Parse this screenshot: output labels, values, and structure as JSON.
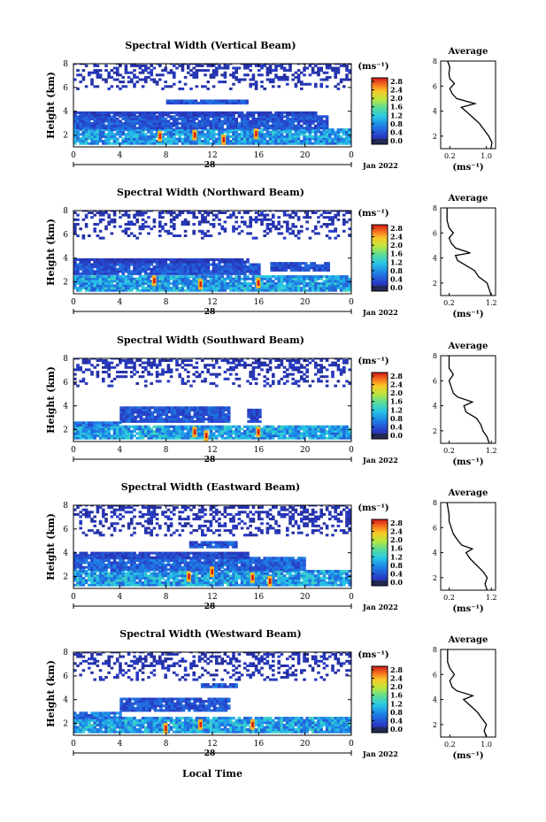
{
  "figure": {
    "xaxis_title": "Local Time",
    "colorbar_label": "(ms⁻¹)",
    "avg_title": "Average",
    "avg_xlabel": "(ms⁻¹)"
  },
  "chart_data": [
    {
      "type": "heatmap",
      "title": "Spectral Width (Vertical Beam)",
      "ylabel": "Height (km)",
      "ylim": [
        1,
        8
      ],
      "yticks": [
        2,
        4,
        6,
        8
      ],
      "xticks": [
        "0",
        "4",
        "8",
        "12",
        "16",
        "20",
        "0"
      ],
      "date_label": "28",
      "month_label": "Jan 2022",
      "colorbar_ticks": [
        "2.8",
        "2.4",
        "2.0",
        "1.6",
        "1.2",
        "0.8",
        "0.4",
        "0.0"
      ],
      "avg_xticks": [
        "0.2",
        "1.0"
      ],
      "avg_xlim": [
        0,
        1.2
      ],
      "avg_yticks": [
        "2",
        "4",
        "6",
        "8"
      ],
      "layers": [
        {
          "bottom": 1.2,
          "top": 2.5,
          "t0": 0,
          "t1": 24,
          "value": 0.9
        },
        {
          "bottom": 2.5,
          "top": 3.6,
          "t0": 0,
          "t1": 22,
          "value": 0.5
        },
        {
          "bottom": 3.6,
          "top": 3.9,
          "t0": 0,
          "t1": 21,
          "value": 0.35
        },
        {
          "bottom": 4.6,
          "top": 4.9,
          "t0": 8,
          "t1": 15,
          "value": 0.5
        }
      ],
      "sparse": {
        "bottom": 5.8,
        "top": 8.0,
        "t0": 0,
        "t1": 24
      },
      "hot": [
        [
          10.5,
          2.0
        ],
        [
          15.8,
          2.1
        ],
        [
          7.5,
          1.9
        ],
        [
          13.0,
          1.6
        ]
      ],
      "avg_profile": [
        [
          1.0,
          1.1
        ],
        [
          1.5,
          1.12
        ],
        [
          2.0,
          1.05
        ],
        [
          2.5,
          0.95
        ],
        [
          3.0,
          0.85
        ],
        [
          3.5,
          0.7
        ],
        [
          4.0,
          0.55
        ],
        [
          4.3,
          0.45
        ],
        [
          4.6,
          0.75
        ],
        [
          5.0,
          0.35
        ],
        [
          5.4,
          0.25
        ],
        [
          5.8,
          0.2
        ],
        [
          6.2,
          0.3
        ],
        [
          6.6,
          0.2
        ],
        [
          7.0,
          0.18
        ],
        [
          7.5,
          0.2
        ],
        [
          8.0,
          0.15
        ]
      ]
    },
    {
      "type": "heatmap",
      "title": "Spectral Width (Northward Beam)",
      "ylabel": "Height (km)",
      "ylim": [
        1,
        8
      ],
      "yticks": [
        2,
        4,
        6,
        8
      ],
      "xticks": [
        "0",
        "4",
        "8",
        "12",
        "16",
        "20",
        "0"
      ],
      "date_label": "28",
      "month_label": "Jan 2022",
      "colorbar_ticks": [
        "2.8",
        "2.4",
        "2.0",
        "1.6",
        "1.2",
        "0.8",
        "0.4",
        "0.0"
      ],
      "avg_xticks": [
        "0.2",
        "1.2"
      ],
      "avg_xlim": [
        0,
        1.3
      ],
      "avg_yticks": [
        "2",
        "4",
        "6",
        "8"
      ],
      "layers": [
        {
          "bottom": 1.2,
          "top": 2.4,
          "t0": 0,
          "t1": 24,
          "value": 0.95
        },
        {
          "bottom": 2.6,
          "top": 3.4,
          "t0": 0,
          "t1": 16,
          "value": 0.5
        },
        {
          "bottom": 2.9,
          "top": 3.5,
          "t0": 17,
          "t1": 22,
          "value": 0.45
        },
        {
          "bottom": 3.6,
          "top": 3.8,
          "t0": 0,
          "t1": 15,
          "value": 0.3
        }
      ],
      "sparse": {
        "bottom": 5.6,
        "top": 8.0,
        "t0": 0,
        "t1": 24
      },
      "hot": [
        [
          11.0,
          1.8
        ],
        [
          7.0,
          2.1
        ],
        [
          16.0,
          1.9
        ]
      ],
      "avg_profile": [
        [
          1.0,
          1.2
        ],
        [
          1.5,
          1.15
        ],
        [
          2.0,
          1.1
        ],
        [
          2.5,
          0.9
        ],
        [
          3.0,
          0.8
        ],
        [
          3.4,
          0.6
        ],
        [
          3.8,
          0.4
        ],
        [
          4.2,
          0.35
        ],
        [
          4.4,
          0.7
        ],
        [
          4.8,
          0.35
        ],
        [
          5.2,
          0.25
        ],
        [
          5.6,
          0.2
        ],
        [
          6.0,
          0.3
        ],
        [
          6.4,
          0.2
        ],
        [
          7.0,
          0.15
        ],
        [
          8.0,
          0.15
        ]
      ]
    },
    {
      "type": "heatmap",
      "title": "Spectral Width (Southward Beam)",
      "ylabel": "Height (km)",
      "ylim": [
        1,
        8
      ],
      "yticks": [
        2,
        4,
        6,
        8
      ],
      "xticks": [
        "0",
        "4",
        "8",
        "12",
        "16",
        "20",
        "0"
      ],
      "date_label": "28",
      "month_label": "Jan 2022",
      "colorbar_ticks": [
        "2.8",
        "2.4",
        "2.0",
        "1.6",
        "1.2",
        "0.8",
        "0.4",
        "0.0"
      ],
      "avg_xticks": [
        "0.2",
        "1.2"
      ],
      "avg_xlim": [
        0,
        1.3
      ],
      "avg_yticks": [
        "2",
        "4",
        "6",
        "8"
      ],
      "layers": [
        {
          "bottom": 1.2,
          "top": 2.3,
          "t0": 0,
          "t1": 24,
          "value": 0.95
        },
        {
          "bottom": 2.3,
          "top": 2.6,
          "t0": 0,
          "t1": 4,
          "value": 0.7
        },
        {
          "bottom": 2.6,
          "top": 3.8,
          "t0": 4,
          "t1": 13.5,
          "value": 0.5
        },
        {
          "bottom": 2.6,
          "top": 3.6,
          "t0": 15,
          "t1": 16,
          "value": 0.4
        }
      ],
      "sparse": {
        "bottom": 5.6,
        "top": 8.0,
        "t0": 0,
        "t1": 24
      },
      "hot": [
        [
          10.5,
          1.8
        ],
        [
          16.0,
          1.8
        ],
        [
          11.5,
          1.5
        ]
      ],
      "avg_profile": [
        [
          1.0,
          1.15
        ],
        [
          1.5,
          1.1
        ],
        [
          2.0,
          1.0
        ],
        [
          2.5,
          0.95
        ],
        [
          3.0,
          0.85
        ],
        [
          3.5,
          0.6
        ],
        [
          4.0,
          0.55
        ],
        [
          4.3,
          0.75
        ],
        [
          4.7,
          0.4
        ],
        [
          5.0,
          0.3
        ],
        [
          5.5,
          0.25
        ],
        [
          6.0,
          0.2
        ],
        [
          6.5,
          0.3
        ],
        [
          7.0,
          0.2
        ],
        [
          8.0,
          0.2
        ]
      ]
    },
    {
      "type": "heatmap",
      "title": "Spectral Width (Eastward Beam)",
      "ylabel": "Height (km)",
      "ylim": [
        1,
        8
      ],
      "yticks": [
        2,
        4,
        6,
        8
      ],
      "xticks": [
        "0",
        "4",
        "8",
        "12",
        "16",
        "20",
        "0"
      ],
      "date_label": "28",
      "month_label": "Jan 2022",
      "colorbar_ticks": [
        "2.8",
        "2.4",
        "2.0",
        "1.6",
        "1.2",
        "0.8",
        "0.4",
        "0.0"
      ],
      "avg_xticks": [
        "0.2",
        "1.2"
      ],
      "avg_xlim": [
        0,
        1.3
      ],
      "avg_yticks": [
        "2",
        "4",
        "6",
        "8"
      ],
      "layers": [
        {
          "bottom": 1.2,
          "top": 2.5,
          "t0": 0,
          "t1": 24,
          "value": 0.95
        },
        {
          "bottom": 2.5,
          "top": 3.5,
          "t0": 0,
          "t1": 20,
          "value": 0.6
        },
        {
          "bottom": 3.5,
          "top": 3.9,
          "t0": 0,
          "t1": 15,
          "value": 0.4
        },
        {
          "bottom": 4.4,
          "top": 4.8,
          "t0": 10,
          "t1": 14,
          "value": 0.5
        }
      ],
      "sparse": {
        "bottom": 5.4,
        "top": 8.0,
        "t0": 0,
        "t1": 24
      },
      "hot": [
        [
          12.0,
          2.4
        ],
        [
          15.5,
          1.9
        ],
        [
          10.0,
          2.0
        ],
        [
          17.0,
          1.6
        ]
      ],
      "avg_profile": [
        [
          1.0,
          1.1
        ],
        [
          1.5,
          1.05
        ],
        [
          2.0,
          1.1
        ],
        [
          2.5,
          1.0
        ],
        [
          3.0,
          0.85
        ],
        [
          3.5,
          0.7
        ],
        [
          4.0,
          0.6
        ],
        [
          4.3,
          0.75
        ],
        [
          4.6,
          0.5
        ],
        [
          5.0,
          0.4
        ],
        [
          5.5,
          0.3
        ],
        [
          6.0,
          0.25
        ],
        [
          6.5,
          0.2
        ],
        [
          7.0,
          0.2
        ],
        [
          8.0,
          0.15
        ]
      ]
    },
    {
      "type": "heatmap",
      "title": "Spectral Width (Westward Beam)",
      "ylabel": "Height (km)",
      "ylim": [
        1,
        8
      ],
      "yticks": [
        2,
        4,
        6,
        8
      ],
      "xticks": [
        "0",
        "4",
        "8",
        "12",
        "16",
        "20",
        "0"
      ],
      "date_label": "28",
      "month_label": "Jan 2022",
      "colorbar_ticks": [
        "2.8",
        "2.4",
        "2.0",
        "1.6",
        "1.2",
        "0.8",
        "0.4",
        "0.0"
      ],
      "avg_xticks": [
        "0.2",
        "1.0"
      ],
      "avg_xlim": [
        0,
        1.2
      ],
      "avg_yticks": [
        "2",
        "4",
        "6",
        "8"
      ],
      "layers": [
        {
          "bottom": 1.2,
          "top": 2.4,
          "t0": 0,
          "t1": 24,
          "value": 0.95
        },
        {
          "bottom": 2.4,
          "top": 2.8,
          "t0": 0,
          "t1": 4,
          "value": 0.7
        },
        {
          "bottom": 3.0,
          "top": 4.0,
          "t0": 4,
          "t1": 13.5,
          "value": 0.5
        },
        {
          "bottom": 5.0,
          "top": 5.2,
          "t0": 11,
          "t1": 14,
          "value": 0.55
        }
      ],
      "sparse": {
        "bottom": 5.6,
        "top": 8.0,
        "t0": 0,
        "t1": 24
      },
      "hot": [
        [
          11.0,
          1.9
        ],
        [
          15.5,
          1.9
        ],
        [
          8.0,
          1.6
        ]
      ],
      "avg_profile": [
        [
          1.0,
          1.0
        ],
        [
          1.5,
          0.95
        ],
        [
          2.0,
          1.0
        ],
        [
          2.5,
          0.9
        ],
        [
          3.0,
          0.8
        ],
        [
          3.5,
          0.65
        ],
        [
          4.0,
          0.5
        ],
        [
          4.3,
          0.7
        ],
        [
          4.7,
          0.35
        ],
        [
          5.0,
          0.25
        ],
        [
          5.5,
          0.2
        ],
        [
          6.0,
          0.3
        ],
        [
          6.5,
          0.2
        ],
        [
          7.0,
          0.15
        ],
        [
          8.0,
          0.15
        ]
      ]
    }
  ]
}
